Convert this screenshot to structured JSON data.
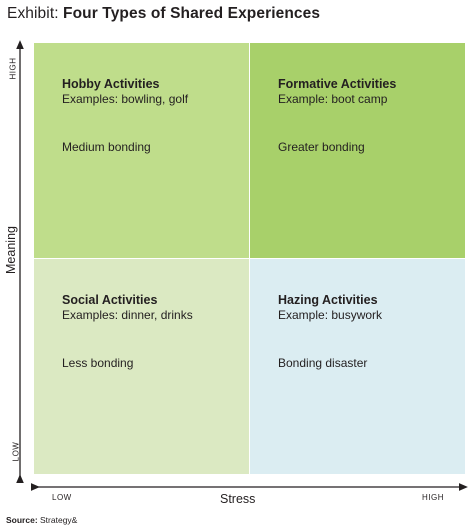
{
  "title": {
    "prefix": "Exhibit: ",
    "main": "Four Types of Shared Experiences"
  },
  "quadrants": {
    "top_left": {
      "title": "Hobby Activities",
      "example": "Examples: bowling, golf",
      "bonding": "Medium bonding"
    },
    "top_right": {
      "title": "Formative Activities",
      "example": "Example: boot camp",
      "bonding": "Greater bonding"
    },
    "bottom_left": {
      "title": "Social Activities",
      "example": "Examples: dinner, drinks",
      "bonding": "Less bonding"
    },
    "bottom_right": {
      "title": "Hazing Activities",
      "example": "Example: busywork",
      "bonding": "Bonding disaster"
    }
  },
  "y_axis": {
    "label": "Meaning",
    "high": "HIGH",
    "low": "LOW"
  },
  "x_axis": {
    "label": "Stress",
    "low": "LOW",
    "high": "HIGH"
  },
  "source": {
    "prefix": "Source:",
    "text": " Strategy&"
  },
  "colors": {
    "top_left": "#bfdd8b",
    "top_right": "#a8d06a",
    "bottom_left": "#dbe9c2",
    "bottom_right": "#dbedf2",
    "text": "#231f20"
  }
}
